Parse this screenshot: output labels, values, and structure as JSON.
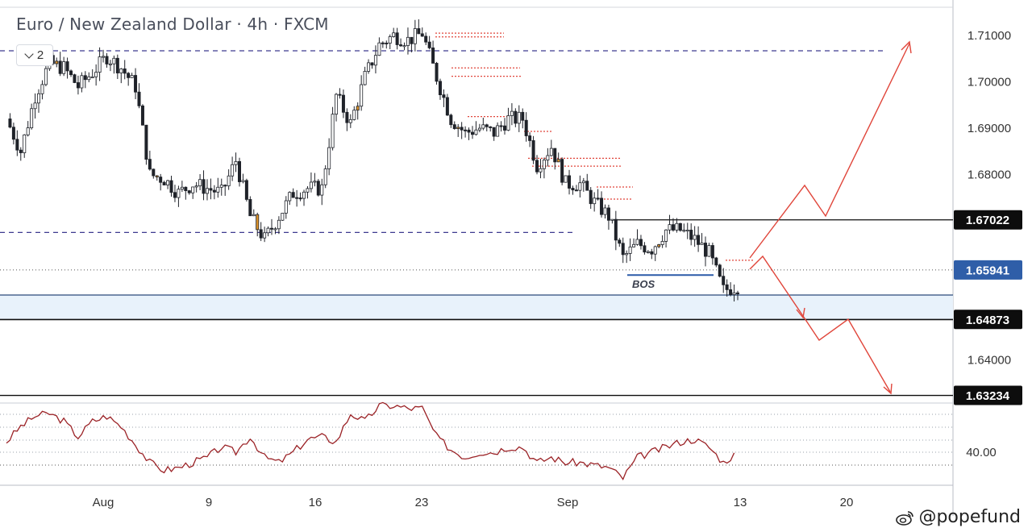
{
  "header": {
    "title": "Euro / New Zealand Dollar · 4h · FXCM",
    "collapse_count": "2"
  },
  "watermark": {
    "handle": "@popefund",
    "icon": "weibo-icon"
  },
  "colors": {
    "candle_body": "#1f2229",
    "candle_highlight": "#d9912b",
    "purple_dash": "#3e3a8f",
    "red_lines": "#e0453a",
    "zone_fill": "#e8f2fb",
    "zone_border": "#2a4a7a",
    "price_label_bg": "#0d0d0d",
    "current_price_bg": "#2f5ea8",
    "rsi_line": "#9b2226",
    "bos_line": "#2b5aa8",
    "axis_text": "#333333"
  },
  "chart_data": {
    "type": "line",
    "title": "Euro / New Zealand Dollar · 4h · FXCM",
    "x_ticks": [
      "Aug",
      "9",
      "16",
      "23",
      "Sep",
      "13",
      "20"
    ],
    "y_ticks": [
      "1.71000",
      "1.70000",
      "1.69000",
      "1.68000",
      "1.64000"
    ],
    "ylim": [
      1.63,
      1.712
    ],
    "price_labels": [
      {
        "value": 1.67022,
        "label": "1.67022",
        "style": "black"
      },
      {
        "value": 1.65941,
        "label": "1.65941",
        "style": "current"
      },
      {
        "value": 1.64873,
        "label": "1.64873",
        "style": "black"
      },
      {
        "value": 1.63234,
        "label": "1.63234",
        "style": "black"
      }
    ],
    "series": [
      {
        "values": [
          1.692,
          1.685,
          1.697,
          1.704,
          1.703,
          1.699,
          1.702,
          1.7055,
          1.703,
          1.699,
          1.68,
          1.679,
          1.676,
          1.678,
          1.677,
          1.676,
          1.683,
          1.671,
          1.666,
          1.671,
          1.676,
          1.677,
          1.677,
          1.697,
          1.691,
          1.701,
          1.708,
          1.71,
          1.709,
          1.7105,
          1.701,
          1.692,
          1.689,
          1.69,
          1.689,
          1.692,
          1.692,
          1.682,
          1.686,
          1.678,
          1.678,
          1.674,
          1.671,
          1.662,
          1.665,
          1.664,
          1.668,
          1.668,
          1.666,
          1.663,
          1.655,
          1.656
        ]
      }
    ],
    "annotations": {
      "bos_label": "BOS",
      "purple_levels": [
        1.7067,
        1.6675
      ],
      "zone": [
        1.6487,
        1.654
      ]
    },
    "rsi": {
      "label": "40.00",
      "values": [
        44,
        50,
        54,
        55,
        52,
        46,
        52,
        54,
        50,
        43,
        36,
        33,
        34,
        36,
        38,
        42,
        40,
        46,
        38,
        36,
        40,
        45,
        46,
        44,
        55,
        52,
        58,
        58,
        57,
        57,
        46,
        41,
        38,
        40,
        40,
        42,
        42,
        36,
        38,
        36,
        36,
        35,
        34,
        30,
        38,
        40,
        42,
        44,
        45,
        42,
        36,
        40
      ]
    }
  }
}
